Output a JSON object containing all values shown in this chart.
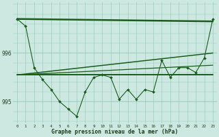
{
  "xlabel": "Graphe pression niveau de la mer (hPa)",
  "bg_color": "#cce8e0",
  "grid_color": "#99ccbb",
  "line_color": "#1a5c1a",
  "xlim": [
    -0.5,
    23.5
  ],
  "ylim": [
    994.55,
    997.05
  ],
  "yticks": [
    995,
    996
  ],
  "xticks": [
    0,
    1,
    2,
    3,
    4,
    5,
    6,
    7,
    8,
    9,
    10,
    11,
    12,
    13,
    14,
    15,
    16,
    17,
    18,
    19,
    20,
    21,
    22,
    23
  ],
  "measured_x": [
    0,
    1,
    2,
    3,
    4,
    5,
    6,
    7,
    8,
    9,
    10,
    11,
    12,
    13,
    14,
    15,
    16,
    17,
    18,
    19,
    20,
    21,
    22,
    23
  ],
  "measured_y": [
    996.7,
    996.55,
    995.7,
    995.45,
    995.25,
    995.0,
    994.85,
    994.7,
    995.2,
    995.5,
    995.55,
    995.5,
    995.05,
    995.25,
    995.05,
    995.25,
    995.2,
    995.85,
    995.5,
    995.7,
    995.7,
    995.6,
    995.9,
    996.7
  ],
  "line1_x": [
    0,
    23
  ],
  "line1_y": [
    996.7,
    996.65
  ],
  "line1_lw": 1.8,
  "line2_x": [
    0,
    23
  ],
  "line2_y": [
    995.55,
    995.55
  ],
  "line2_lw": 1.4,
  "line3_x": [
    0,
    23
  ],
  "line3_y": [
    995.55,
    996.0
  ],
  "line3_lw": 1.1,
  "line4_x": [
    0,
    23
  ],
  "line4_y": [
    995.55,
    995.75
  ],
  "line4_lw": 0.9
}
